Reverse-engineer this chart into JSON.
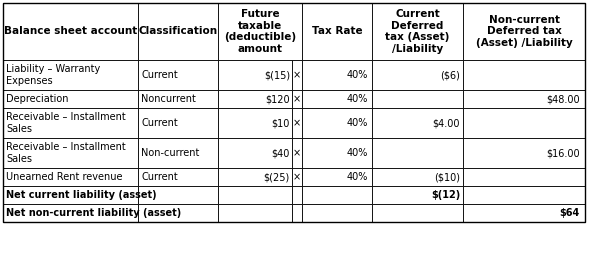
{
  "rows": [
    {
      "account": "Liability – Warranty\nExpenses",
      "classification": "Current",
      "amount": "$(15)",
      "mult": "×",
      "tax_rate": "40%",
      "current": "($6)",
      "noncurrent": ""
    },
    {
      "account": "Depreciation",
      "classification": "Noncurrent",
      "amount": "$120",
      "mult": "×",
      "tax_rate": "40%",
      "current": "",
      "noncurrent": "$48.00"
    },
    {
      "account": "Receivable – Installment\nSales",
      "classification": "Current",
      "amount": "$10",
      "mult": "×",
      "tax_rate": "40%",
      "current": "$4.00",
      "noncurrent": ""
    },
    {
      "account": "Receivable – Installment\nSales",
      "classification": "Non-current",
      "amount": "$40",
      "mult": "×",
      "tax_rate": "40%",
      "current": "",
      "noncurrent": "$16.00"
    },
    {
      "account": "Unearned Rent revenue",
      "classification": "Current",
      "amount": "$(25)",
      "mult": "×",
      "tax_rate": "40%",
      "current": "($10)",
      "noncurrent": ""
    }
  ],
  "net_rows": [
    {
      "label": "Net current liability (asset)",
      "current": "$(12)",
      "noncurrent": ""
    },
    {
      "label": "Net non-current liability (asset)",
      "current": "",
      "noncurrent": "$64"
    }
  ],
  "header_col0": "Balance sheet account",
  "header_col1": "Classification",
  "header_col2": "Future\ntaxable\n(deductible)\namount",
  "header_col4": "Tax Rate",
  "header_col5": "Current\nDeferred\ntax (Asset)\n/Liability",
  "header_col6": "Non-current\nDeferred tax\n(Asset) /Liability",
  "bg_color": "#ffffff",
  "border_color": "#000000",
  "font_size": 7.0,
  "header_font_size": 7.5
}
